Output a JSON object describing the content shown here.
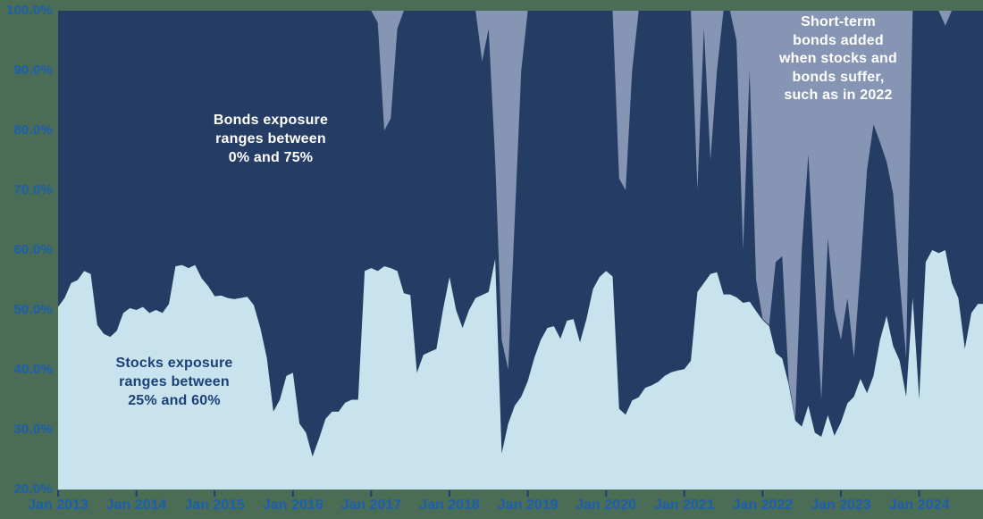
{
  "colors": {
    "background": "#4B6C55",
    "stocks": "#C8E2EE",
    "bonds": "#253C64",
    "short_term_bonds": "#8695B3",
    "axis_label": "#1B5FAF",
    "tick": "#1B3F73",
    "note_on_dark": "#FFFFFF",
    "note_on_light": "#1D4077"
  },
  "axes": {
    "y_labels": [
      "100.0%",
      "90.0%",
      "80.0%",
      "70.0%",
      "60.0%",
      "50.0%",
      "40.0%",
      "30.0%",
      "20.0%"
    ],
    "x_labels": [
      "Jan 2013",
      "Jan 2014",
      "Jan 2015",
      "Jan 2016",
      "Jan 2017",
      "Jan 2018",
      "Jan 2019",
      "Jan 2020",
      "Jan 2021",
      "Jan 2022",
      "Jan 2023",
      "Jan 2024"
    ]
  },
  "annotations": {
    "bonds_note": {
      "lines": [
        "Bonds exposure",
        "ranges between",
        "0% and 75%"
      ]
    },
    "stocks_note": {
      "lines": [
        "Stocks exposure",
        "ranges between",
        "25% and 60%"
      ]
    },
    "short_term_note": {
      "lines": [
        "Short-term",
        "bonds added",
        "when stocks and",
        "bonds suffer,",
        "such as in 2022"
      ]
    }
  },
  "chart_data": {
    "type": "area",
    "stacked": true,
    "grid": false,
    "legend": "none",
    "x_start": "2013-01",
    "x_frequency": "monthly",
    "ylim": [
      20,
      100
    ],
    "y_tick_step": 10,
    "x_tick_month_indices": [
      0,
      12,
      24,
      36,
      48,
      60,
      72,
      84,
      96,
      108,
      120,
      132
    ],
    "unit": "percent_of_portfolio",
    "series": [
      {
        "name": "Stocks",
        "color": "#C8E2EE",
        "values": [
          50.5,
          52,
          54.5,
          55,
          56.5,
          56,
          47.5,
          46,
          45.5,
          46.5,
          49.5,
          50.3,
          50,
          50.5,
          49.5,
          50,
          49.5,
          51,
          57.3,
          57.5,
          57,
          57.5,
          55.3,
          54,
          52.3,
          52.4,
          52,
          51.8,
          52,
          52.2,
          50.8,
          47,
          42,
          33,
          35,
          39,
          39.5,
          31,
          29.5,
          25.5,
          28.5,
          31.8,
          33,
          33,
          34.5,
          35,
          35,
          56.5,
          57,
          56.5,
          57.3,
          57,
          56.5,
          52.8,
          52.5,
          39.5,
          42.5,
          43,
          43.5,
          50,
          55.5,
          50,
          47,
          50,
          52,
          52.5,
          53,
          58.5,
          26,
          31,
          34,
          35.5,
          38.1,
          42,
          45,
          47,
          47.3,
          45.2,
          48.2,
          48.5,
          44.6,
          48.5,
          53.5,
          55.5,
          56.5,
          55.6,
          33.5,
          32.5,
          34.9,
          35.4,
          37,
          37.4,
          38,
          39,
          39.6,
          39.9,
          40.1,
          41.5,
          53,
          54.5,
          56,
          56.3,
          52.6,
          52.6,
          52.1,
          51.2,
          51.4,
          49.8,
          48.3,
          47.3,
          42.8,
          41.9,
          37.5,
          31.5,
          30.5,
          34,
          29.5,
          28.8,
          32.4,
          29,
          31.2,
          34.4,
          35.5,
          38.5,
          36.1,
          39,
          45,
          49,
          44,
          41.5,
          35.5,
          52,
          35,
          58,
          60,
          59.5,
          60,
          54.5,
          52,
          43.5,
          49.5,
          51
        ]
      },
      {
        "name": "Bonds",
        "color": "#253C64",
        "values": [
          49.5,
          48,
          45.5,
          45,
          43.5,
          44,
          52.5,
          54,
          54.5,
          53.5,
          50.5,
          49.7,
          50,
          49.5,
          50.5,
          50,
          50.5,
          49,
          42.7,
          42.5,
          43,
          42.5,
          44.7,
          46,
          47.7,
          47.6,
          48,
          48.2,
          48,
          47.8,
          49.2,
          53,
          58,
          67,
          65,
          61,
          60.5,
          69,
          70.5,
          74.5,
          71.5,
          68.2,
          67,
          67,
          65.5,
          65,
          65,
          43.5,
          43,
          41.5,
          22.7,
          25,
          40.5,
          47.2,
          47.5,
          60.5,
          57.5,
          57,
          56.5,
          50,
          44.5,
          50,
          53,
          50,
          48,
          39,
          44,
          16.5,
          19,
          9,
          31,
          54.5,
          61.9,
          58,
          55,
          53,
          52.7,
          54.8,
          51.8,
          51.5,
          55.4,
          51.5,
          46.5,
          44.5,
          43.5,
          44.4,
          38.5,
          37.5,
          55.1,
          64.6,
          63,
          62.6,
          62,
          61,
          60.4,
          60.1,
          59.9,
          58.5,
          17,
          42.5,
          19,
          33.7,
          47.4,
          47.4,
          42.9,
          8.8,
          38.6,
          5.2,
          0.2,
          0.2,
          15.2,
          17.1,
          0.5,
          0.5,
          29.5,
          42,
          25.5,
          6.2,
          29.6,
          21,
          13.8,
          17.6,
          6.5,
          18.5,
          37.3,
          42,
          33,
          25.8,
          25.5,
          13.5,
          6.5,
          48,
          65,
          42,
          40,
          40.5,
          37.5,
          45.5,
          48,
          56.5,
          50.5,
          49
        ]
      },
      {
        "name": "Short-term bonds",
        "color": "#8695B3",
        "values": [
          0,
          0,
          0,
          0,
          0,
          0,
          0,
          0,
          0,
          0,
          0,
          0,
          0,
          0,
          0,
          0,
          0,
          0,
          0,
          0,
          0,
          0,
          0,
          0,
          0,
          0,
          0,
          0,
          0,
          0,
          0,
          0,
          0,
          0,
          0,
          0,
          0,
          0,
          0,
          0,
          0,
          0,
          0,
          0,
          0,
          0,
          0,
          0,
          0,
          2,
          20,
          18,
          3,
          0,
          0,
          0,
          0,
          0,
          0,
          0,
          0,
          0,
          0,
          0,
          0,
          8.5,
          3,
          25,
          55,
          60,
          35,
          10,
          0,
          0,
          0,
          0,
          0,
          0,
          0,
          0,
          0,
          0,
          0,
          0,
          0,
          0,
          28,
          30,
          10,
          0,
          0,
          0,
          0,
          0,
          0,
          0,
          0,
          0,
          30,
          3,
          25,
          10,
          0,
          0,
          5,
          40,
          10,
          45,
          51.5,
          52.5,
          42,
          41,
          62,
          68,
          40,
          24,
          45,
          65,
          38,
          50,
          55,
          48,
          58,
          43,
          26.6,
          19,
          22,
          25.2,
          30.5,
          45,
          58,
          0,
          0,
          0,
          0,
          0,
          2.5,
          0,
          0,
          0,
          0,
          0
        ]
      }
    ]
  }
}
